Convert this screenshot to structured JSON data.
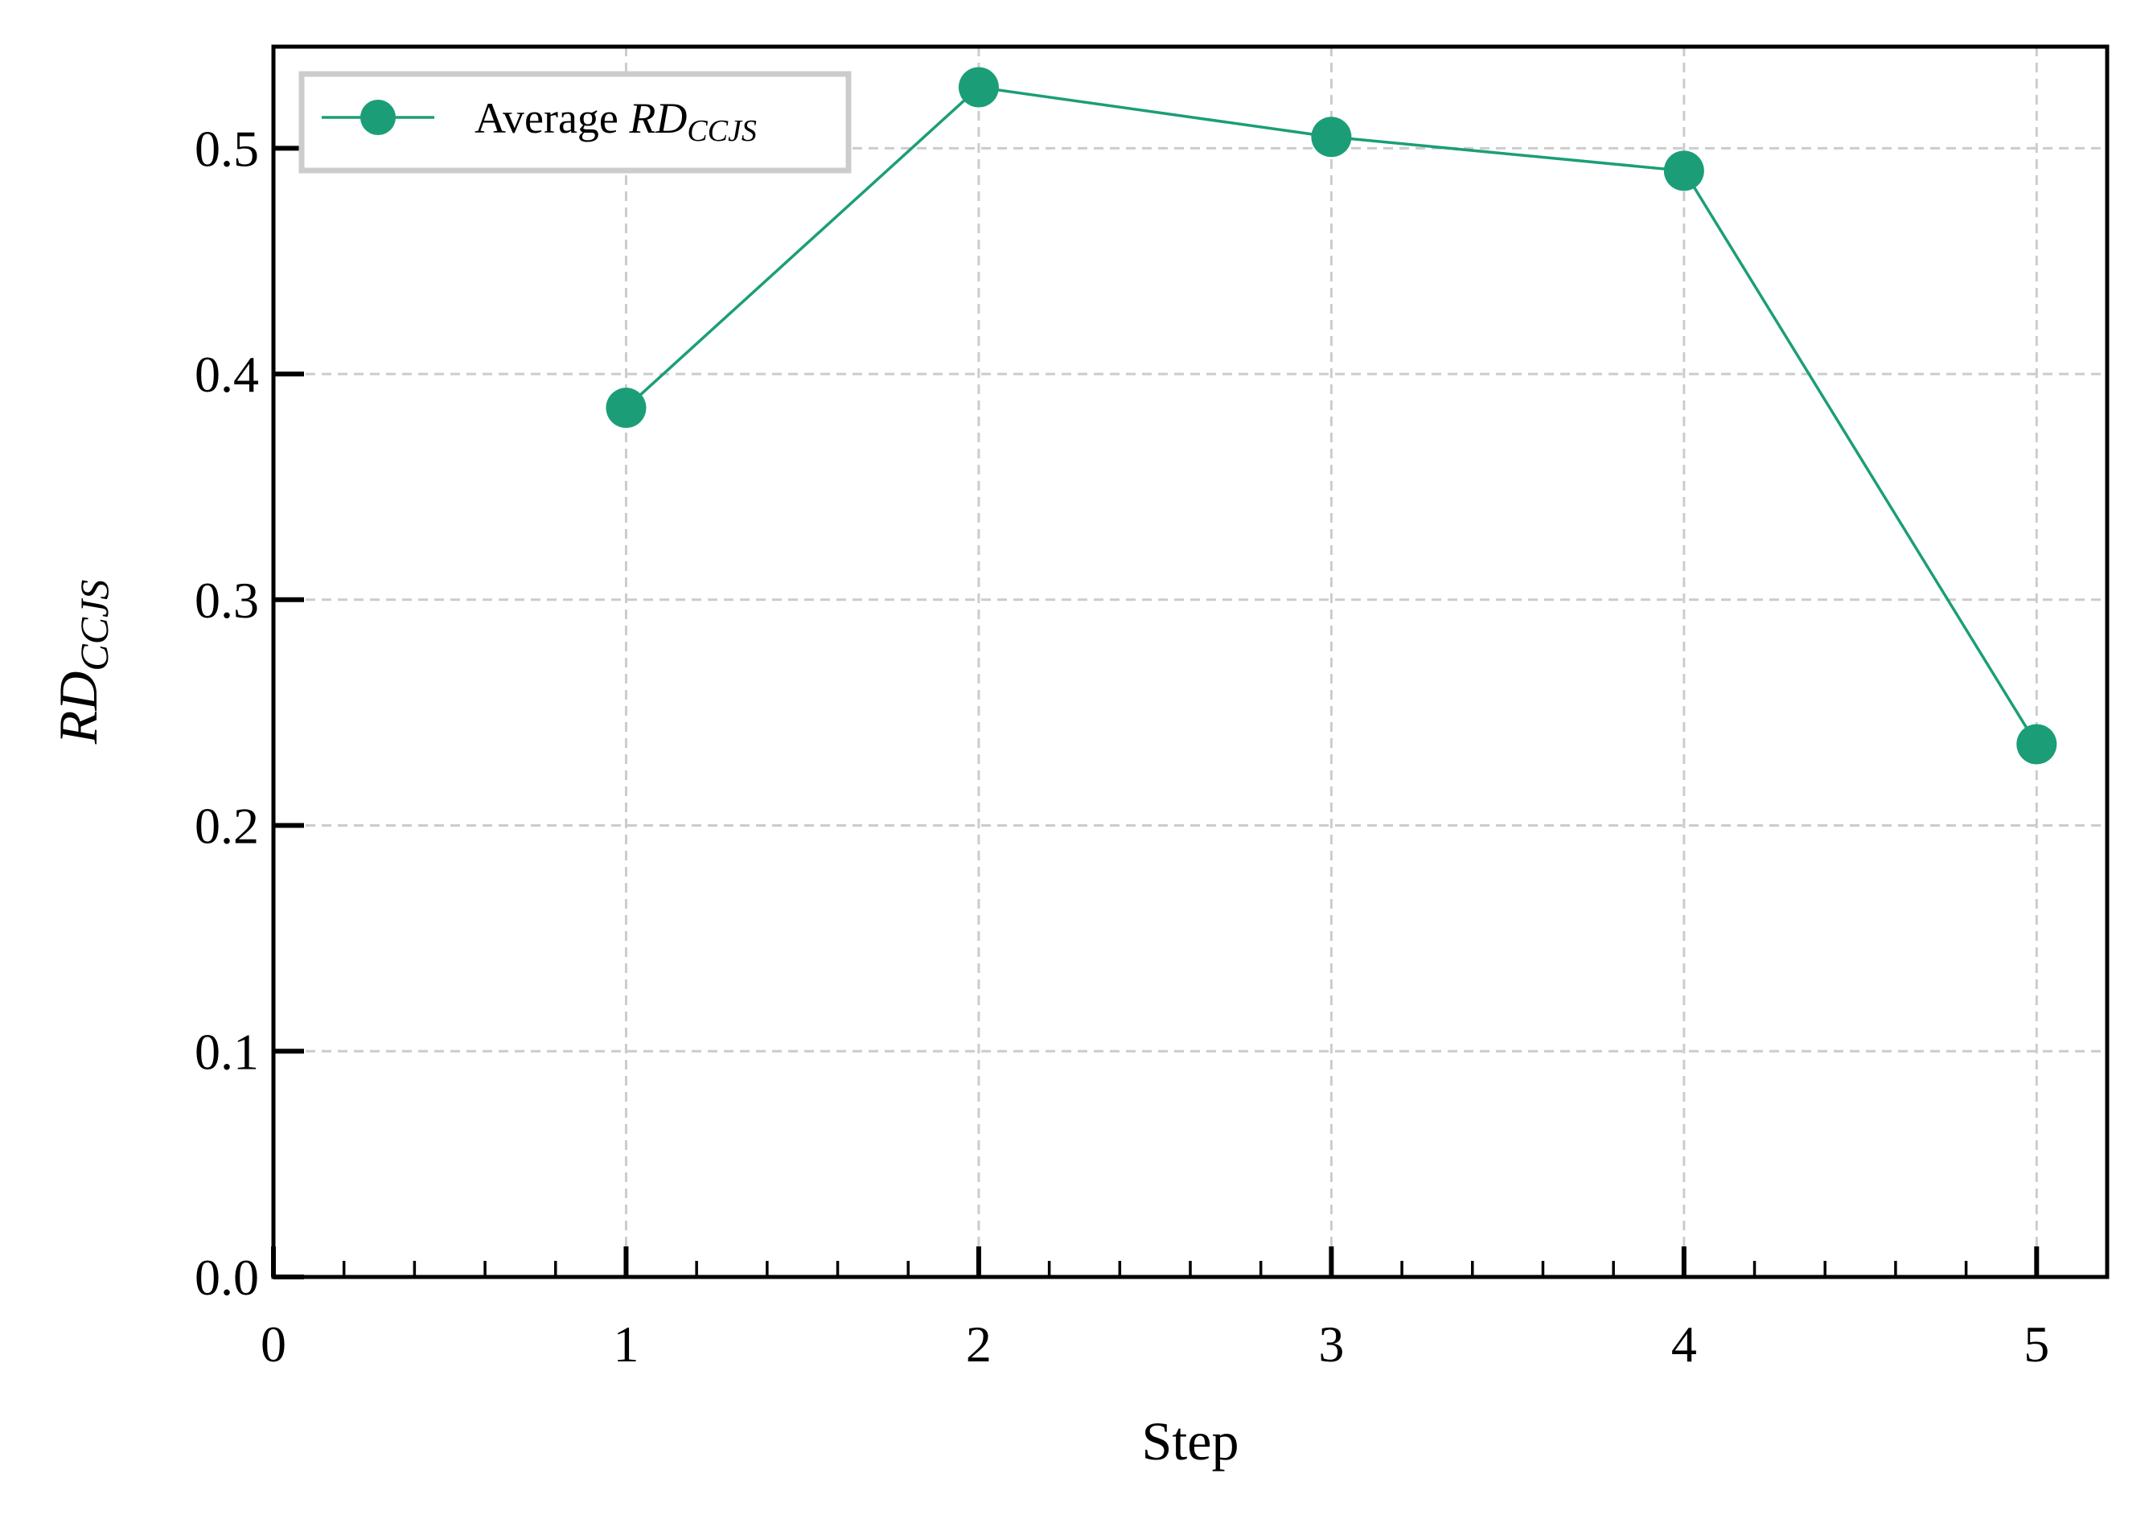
{
  "chart_data": {
    "type": "line",
    "title": "",
    "xlabel": "Step",
    "ylabel": {
      "main": "RD",
      "sub": "CCJS"
    },
    "xlim": [
      0,
      5.2
    ],
    "ylim": [
      0,
      0.545
    ],
    "xticks": [
      0,
      1,
      2,
      3,
      4,
      5
    ],
    "xtick_labels": [
      "0",
      "1",
      "2",
      "3",
      "4",
      "5"
    ],
    "xminor_step": 0.2,
    "yticks": [
      0.0,
      0.1,
      0.2,
      0.3,
      0.4,
      0.5
    ],
    "ytick_labels": [
      "0.0",
      "0.1",
      "0.2",
      "0.3",
      "0.4",
      "0.5"
    ],
    "grid": true,
    "legend_position": "top-left",
    "series": [
      {
        "name": "Average RD_CCJS",
        "legend_label": {
          "prefix": "Average ",
          "main": "RD",
          "sub": "CCJS"
        },
        "color": "#1b9e77",
        "x": [
          1,
          2,
          3,
          4,
          5
        ],
        "y": [
          0.385,
          0.527,
          0.505,
          0.49,
          0.236
        ]
      }
    ]
  }
}
